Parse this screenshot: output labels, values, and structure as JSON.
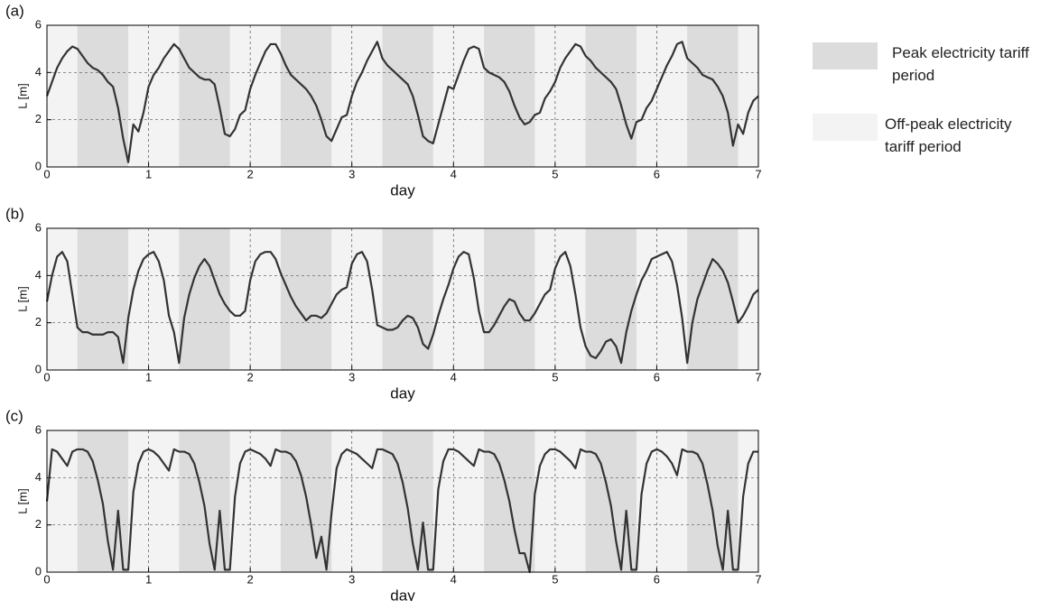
{
  "legend": {
    "items": [
      {
        "label": "Peak electricity tariff period",
        "color": "#dcdcdc"
      },
      {
        "label": "Off-peak electricity tariff period",
        "color": "#f3f3f3"
      }
    ]
  },
  "chart_data": [
    {
      "type": "line",
      "label": "(a)",
      "xlabel": "day",
      "ylabel": "L [m]",
      "xlim": [
        0,
        7
      ],
      "ylim": [
        0,
        6
      ],
      "xticks": [
        0,
        1,
        2,
        3,
        4,
        5,
        6,
        7
      ],
      "yticks": [
        0,
        2,
        4,
        6
      ],
      "grid": true,
      "peak_spans": [
        [
          0.3,
          0.8
        ],
        [
          1.3,
          1.8
        ],
        [
          2.3,
          2.8
        ],
        [
          3.3,
          3.8
        ],
        [
          4.3,
          4.8
        ],
        [
          5.3,
          5.8
        ],
        [
          6.3,
          6.8
        ]
      ],
      "x": [
        0,
        0.05,
        0.1,
        0.15,
        0.2,
        0.25,
        0.3,
        0.35,
        0.4,
        0.45,
        0.5,
        0.55,
        0.6,
        0.65,
        0.7,
        0.75,
        0.8,
        0.85,
        0.9,
        0.95,
        1,
        1.05,
        1.1,
        1.15,
        1.2,
        1.25,
        1.3,
        1.35,
        1.4,
        1.45,
        1.5,
        1.55,
        1.6,
        1.65,
        1.7,
        1.75,
        1.8,
        1.85,
        1.9,
        1.95,
        2,
        2.05,
        2.1,
        2.15,
        2.2,
        2.25,
        2.3,
        2.35,
        2.4,
        2.45,
        2.5,
        2.55,
        2.6,
        2.65,
        2.7,
        2.75,
        2.8,
        2.85,
        2.9,
        2.95,
        3,
        3.05,
        3.1,
        3.15,
        3.2,
        3.25,
        3.3,
        3.35,
        3.4,
        3.45,
        3.5,
        3.55,
        3.6,
        3.65,
        3.7,
        3.75,
        3.8,
        3.85,
        3.9,
        3.95,
        4,
        4.05,
        4.1,
        4.15,
        4.2,
        4.25,
        4.3,
        4.35,
        4.4,
        4.45,
        4.5,
        4.55,
        4.6,
        4.65,
        4.7,
        4.75,
        4.8,
        4.85,
        4.9,
        4.95,
        5,
        5.05,
        5.1,
        5.15,
        5.2,
        5.25,
        5.3,
        5.35,
        5.4,
        5.45,
        5.5,
        5.55,
        5.6,
        5.65,
        5.7,
        5.75,
        5.8,
        5.85,
        5.9,
        5.95,
        6,
        6.05,
        6.1,
        6.15,
        6.2,
        6.25,
        6.3,
        6.35,
        6.4,
        6.45,
        6.5,
        6.55,
        6.6,
        6.65,
        6.7,
        6.75,
        6.8,
        6.85,
        6.9,
        6.95,
        7
      ],
      "series": [
        {
          "color": "#333333",
          "values": [
            3.0,
            3.6,
            4.2,
            4.6,
            4.9,
            5.1,
            5.0,
            4.7,
            4.4,
            4.2,
            4.1,
            3.9,
            3.6,
            3.4,
            2.5,
            1.2,
            0.2,
            1.8,
            1.5,
            2.3,
            3.4,
            3.9,
            4.2,
            4.6,
            4.9,
            5.2,
            5.0,
            4.6,
            4.2,
            4.0,
            3.8,
            3.7,
            3.7,
            3.5,
            2.5,
            1.4,
            1.3,
            1.6,
            2.2,
            2.4,
            3.3,
            3.9,
            4.4,
            4.9,
            5.2,
            5.2,
            4.8,
            4.3,
            3.9,
            3.7,
            3.5,
            3.3,
            3.0,
            2.6,
            2.0,
            1.3,
            1.1,
            1.6,
            2.1,
            2.2,
            3.0,
            3.6,
            4.0,
            4.5,
            4.9,
            5.3,
            4.6,
            4.3,
            4.1,
            3.9,
            3.7,
            3.5,
            3.0,
            2.2,
            1.3,
            1.1,
            1.0,
            1.8,
            2.6,
            3.4,
            3.3,
            3.9,
            4.5,
            5.0,
            5.1,
            5.0,
            4.2,
            4.0,
            3.9,
            3.8,
            3.6,
            3.2,
            2.6,
            2.1,
            1.8,
            1.9,
            2.2,
            2.3,
            2.9,
            3.2,
            3.6,
            4.2,
            4.6,
            4.9,
            5.2,
            5.1,
            4.7,
            4.5,
            4.2,
            4.0,
            3.8,
            3.6,
            3.3,
            2.6,
            1.8,
            1.2,
            1.9,
            2.0,
            2.5,
            2.8,
            3.3,
            3.8,
            4.3,
            4.7,
            5.2,
            5.3,
            4.6,
            4.4,
            4.2,
            3.9,
            3.8,
            3.7,
            3.4,
            3.0,
            2.3,
            0.9,
            1.8,
            1.4,
            2.3,
            2.8,
            3.0
          ]
        }
      ]
    },
    {
      "type": "line",
      "label": "(b)",
      "xlabel": "day",
      "ylabel": "L [m]",
      "xlim": [
        0,
        7
      ],
      "ylim": [
        0,
        6
      ],
      "xticks": [
        0,
        1,
        2,
        3,
        4,
        5,
        6,
        7
      ],
      "yticks": [
        0,
        2,
        4,
        6
      ],
      "grid": true,
      "peak_spans": [
        [
          0.3,
          0.8
        ],
        [
          1.3,
          1.8
        ],
        [
          2.3,
          2.8
        ],
        [
          3.3,
          3.8
        ],
        [
          4.3,
          4.8
        ],
        [
          5.3,
          5.8
        ],
        [
          6.3,
          6.8
        ]
      ],
      "x": [
        0,
        0.05,
        0.1,
        0.15,
        0.2,
        0.25,
        0.3,
        0.35,
        0.4,
        0.45,
        0.5,
        0.55,
        0.6,
        0.65,
        0.7,
        0.75,
        0.8,
        0.85,
        0.9,
        0.95,
        1,
        1.05,
        1.1,
        1.15,
        1.2,
        1.25,
        1.3,
        1.35,
        1.4,
        1.45,
        1.5,
        1.55,
        1.6,
        1.65,
        1.7,
        1.75,
        1.8,
        1.85,
        1.9,
        1.95,
        2,
        2.05,
        2.1,
        2.15,
        2.2,
        2.25,
        2.3,
        2.35,
        2.4,
        2.45,
        2.5,
        2.55,
        2.6,
        2.65,
        2.7,
        2.75,
        2.8,
        2.85,
        2.9,
        2.95,
        3,
        3.05,
        3.1,
        3.15,
        3.2,
        3.25,
        3.3,
        3.35,
        3.4,
        3.45,
        3.5,
        3.55,
        3.6,
        3.65,
        3.7,
        3.75,
        3.8,
        3.85,
        3.9,
        3.95,
        4,
        4.05,
        4.1,
        4.15,
        4.2,
        4.25,
        4.3,
        4.35,
        4.4,
        4.45,
        4.5,
        4.55,
        4.6,
        4.65,
        4.7,
        4.75,
        4.8,
        4.85,
        4.9,
        4.95,
        5,
        5.05,
        5.1,
        5.15,
        5.2,
        5.25,
        5.3,
        5.35,
        5.4,
        5.45,
        5.5,
        5.55,
        5.6,
        5.65,
        5.7,
        5.75,
        5.8,
        5.85,
        5.9,
        5.95,
        6,
        6.05,
        6.1,
        6.15,
        6.2,
        6.25,
        6.3,
        6.35,
        6.4,
        6.45,
        6.5,
        6.55,
        6.6,
        6.65,
        6.7,
        6.75,
        6.8,
        6.85,
        6.9,
        6.95,
        7
      ],
      "series": [
        {
          "color": "#333333",
          "values": [
            2.9,
            4.0,
            4.8,
            5.0,
            4.6,
            3.2,
            1.8,
            1.6,
            1.6,
            1.5,
            1.5,
            1.5,
            1.6,
            1.6,
            1.4,
            0.3,
            2.2,
            3.4,
            4.2,
            4.7,
            4.9,
            5.0,
            4.6,
            3.8,
            2.3,
            1.6,
            0.3,
            2.2,
            3.2,
            3.9,
            4.4,
            4.7,
            4.4,
            3.8,
            3.2,
            2.8,
            2.5,
            2.3,
            2.3,
            2.5,
            3.8,
            4.6,
            4.9,
            5.0,
            5.0,
            4.7,
            4.1,
            3.6,
            3.1,
            2.7,
            2.4,
            2.1,
            2.3,
            2.3,
            2.2,
            2.4,
            2.8,
            3.2,
            3.4,
            3.5,
            4.5,
            4.9,
            5.0,
            4.6,
            3.4,
            1.9,
            1.8,
            1.7,
            1.7,
            1.8,
            2.1,
            2.3,
            2.2,
            1.8,
            1.1,
            0.9,
            1.5,
            2.3,
            3.0,
            3.6,
            4.3,
            4.8,
            5.0,
            4.9,
            3.9,
            2.5,
            1.6,
            1.6,
            1.9,
            2.3,
            2.7,
            3.0,
            2.9,
            2.4,
            2.1,
            2.1,
            2.4,
            2.8,
            3.2,
            3.4,
            4.3,
            4.8,
            5.0,
            4.4,
            3.2,
            1.8,
            1.0,
            0.6,
            0.5,
            0.8,
            1.2,
            1.3,
            1.0,
            0.3,
            1.6,
            2.5,
            3.2,
            3.8,
            4.2,
            4.7,
            4.8,
            4.9,
            5.0,
            4.6,
            3.6,
            2.2,
            0.3,
            2.0,
            3.0,
            3.6,
            4.2,
            4.7,
            4.5,
            4.2,
            3.7,
            2.9,
            2.0,
            2.3,
            2.7,
            3.2,
            3.4
          ]
        }
      ]
    },
    {
      "type": "line",
      "label": "(c)",
      "xlabel": "day",
      "ylabel": "L [m]",
      "xlim": [
        0,
        7
      ],
      "ylim": [
        0,
        6
      ],
      "xticks": [
        0,
        1,
        2,
        3,
        4,
        5,
        6,
        7
      ],
      "yticks": [
        0,
        2,
        4,
        6
      ],
      "grid": true,
      "peak_spans": [
        [
          0.3,
          0.8
        ],
        [
          1.3,
          1.8
        ],
        [
          2.3,
          2.8
        ],
        [
          3.3,
          3.8
        ],
        [
          4.3,
          4.8
        ],
        [
          5.3,
          5.8
        ],
        [
          6.3,
          6.8
        ]
      ],
      "x": [
        0,
        0.05,
        0.1,
        0.15,
        0.2,
        0.25,
        0.3,
        0.35,
        0.4,
        0.45,
        0.5,
        0.55,
        0.6,
        0.65,
        0.7,
        0.75,
        0.8,
        0.85,
        0.9,
        0.95,
        1,
        1.05,
        1.1,
        1.15,
        1.2,
        1.25,
        1.3,
        1.35,
        1.4,
        1.45,
        1.5,
        1.55,
        1.6,
        1.65,
        1.7,
        1.75,
        1.8,
        1.85,
        1.9,
        1.95,
        2,
        2.05,
        2.1,
        2.15,
        2.2,
        2.25,
        2.3,
        2.35,
        2.4,
        2.45,
        2.5,
        2.55,
        2.6,
        2.65,
        2.7,
        2.75,
        2.8,
        2.85,
        2.9,
        2.95,
        3,
        3.05,
        3.1,
        3.15,
        3.2,
        3.25,
        3.3,
        3.35,
        3.4,
        3.45,
        3.5,
        3.55,
        3.6,
        3.65,
        3.7,
        3.75,
        3.8,
        3.85,
        3.9,
        3.95,
        4,
        4.05,
        4.1,
        4.15,
        4.2,
        4.25,
        4.3,
        4.35,
        4.4,
        4.45,
        4.5,
        4.55,
        4.6,
        4.65,
        4.7,
        4.75,
        4.8,
        4.85,
        4.9,
        4.95,
        5,
        5.05,
        5.1,
        5.15,
        5.2,
        5.25,
        5.3,
        5.35,
        5.4,
        5.45,
        5.5,
        5.55,
        5.6,
        5.65,
        5.7,
        5.75,
        5.8,
        5.85,
        5.9,
        5.95,
        6,
        6.05,
        6.1,
        6.15,
        6.2,
        6.25,
        6.3,
        6.35,
        6.4,
        6.45,
        6.5,
        6.55,
        6.6,
        6.65,
        6.7,
        6.75,
        6.8,
        6.85,
        6.9,
        6.95,
        7
      ],
      "series": [
        {
          "color": "#333333",
          "values": [
            3.0,
            5.2,
            5.1,
            4.8,
            4.5,
            5.1,
            5.2,
            5.2,
            5.1,
            4.7,
            3.9,
            2.9,
            1.3,
            0.1,
            2.6,
            0.1,
            0.1,
            3.4,
            4.6,
            5.1,
            5.2,
            5.1,
            4.9,
            4.6,
            4.3,
            5.2,
            5.1,
            5.1,
            5.0,
            4.6,
            3.8,
            2.8,
            1.2,
            0.1,
            2.6,
            0.1,
            0.1,
            3.2,
            4.6,
            5.1,
            5.2,
            5.1,
            5.0,
            4.8,
            4.5,
            5.2,
            5.1,
            5.1,
            5.0,
            4.7,
            4.1,
            3.2,
            2.0,
            0.6,
            1.5,
            0.1,
            2.5,
            4.4,
            5.0,
            5.2,
            5.1,
            5.0,
            4.8,
            4.6,
            4.4,
            5.2,
            5.2,
            5.1,
            5.0,
            4.6,
            3.8,
            2.7,
            1.2,
            0.1,
            2.1,
            0.1,
            0.1,
            3.5,
            4.7,
            5.2,
            5.2,
            5.1,
            4.9,
            4.7,
            4.5,
            5.2,
            5.1,
            5.1,
            5.0,
            4.6,
            3.9,
            3.0,
            1.8,
            0.8,
            0.8,
            0.0,
            3.3,
            4.5,
            5.0,
            5.2,
            5.2,
            5.1,
            4.9,
            4.7,
            4.4,
            5.2,
            5.1,
            5.1,
            5.0,
            4.6,
            3.8,
            2.8,
            1.3,
            0.1,
            2.6,
            0.1,
            0.1,
            3.3,
            4.6,
            5.1,
            5.2,
            5.1,
            4.9,
            4.6,
            4.1,
            5.2,
            5.1,
            5.1,
            5.0,
            4.6,
            3.7,
            2.6,
            1.1,
            0.1,
            2.6,
            0.1,
            0.1,
            3.2,
            4.6,
            5.1,
            5.1
          ]
        }
      ]
    }
  ]
}
